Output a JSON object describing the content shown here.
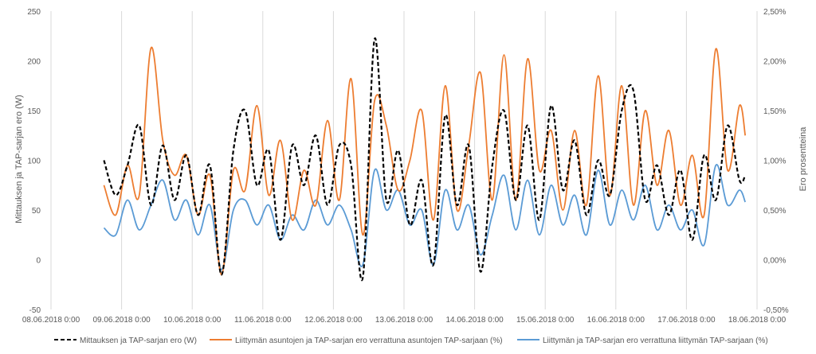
{
  "chart_data": {
    "type": "line",
    "title": "",
    "xlabel": "",
    "ylabel": "Mittauksen ja TAP-sarjan ero (W)",
    "y2label": "Ero prosentteina",
    "ylim": [
      -50,
      250
    ],
    "y_ticks": [
      "-50",
      "0",
      "50",
      "100",
      "150",
      "200",
      "250"
    ],
    "y2lim": [
      -0.5,
      2.5
    ],
    "y2_ticks": [
      "-0,50%",
      "0,00%",
      "0,50%",
      "1,00%",
      "1,50%",
      "2,00%",
      "2,50%"
    ],
    "xlim": [
      "08.06.2018 0:00",
      "18.06.2018 0:00"
    ],
    "x_ticks": [
      "08.06.2018 0:00",
      "09.06.2018 0:00",
      "10.06.2018 0:00",
      "11.06.2018 0:00",
      "12.06.2018 0:00",
      "13.06.2018 0:00",
      "14.06.2018 0:00",
      "15.06.2018 0:00",
      "16.06.2018 0:00",
      "17.06.2018 0:00",
      "18.06.2018 0:00"
    ],
    "grid": "vertical",
    "legend_position": "bottom",
    "series": [
      {
        "name": "Mittauksen ja TAP-sarjan ero (W)",
        "axis": "left",
        "color": "#000000",
        "style": "dashed",
        "points": [
          [
            "08.06.2018 18:00",
            100
          ],
          [
            "08.06.2018 22:00",
            65
          ],
          [
            "09.06.2018 2:00",
            95
          ],
          [
            "09.06.2018 6:00",
            135
          ],
          [
            "09.06.2018 10:00",
            55
          ],
          [
            "09.06.2018 14:00",
            115
          ],
          [
            "09.06.2018 18:00",
            60
          ],
          [
            "09.06.2018 22:00",
            105
          ],
          [
            "10.06.2018 2:00",
            45
          ],
          [
            "10.06.2018 6:00",
            95
          ],
          [
            "10.06.2018 10:00",
            -15
          ],
          [
            "10.06.2018 14:00",
            110
          ],
          [
            "10.06.2018 18:00",
            150
          ],
          [
            "10.06.2018 22:00",
            75
          ],
          [
            "11.06.2018 2:00",
            110
          ],
          [
            "11.06.2018 6:00",
            20
          ],
          [
            "11.06.2018 10:00",
            115
          ],
          [
            "11.06.2018 14:00",
            75
          ],
          [
            "11.06.2018 18:00",
            125
          ],
          [
            "11.06.2018 22:00",
            55
          ],
          [
            "12.06.2018 2:00",
            115
          ],
          [
            "12.06.2018 6:00",
            95
          ],
          [
            "12.06.2018 10:00",
            -18
          ],
          [
            "12.06.2018 14:00",
            222
          ],
          [
            "12.06.2018 18:00",
            60
          ],
          [
            "12.06.2018 22:00",
            110
          ],
          [
            "13.06.2018 2:00",
            35
          ],
          [
            "13.06.2018 6:00",
            80
          ],
          [
            "13.06.2018 10:00",
            -5
          ],
          [
            "13.06.2018 14:00",
            145
          ],
          [
            "13.06.2018 18:00",
            55
          ],
          [
            "13.06.2018 22:00",
            115
          ],
          [
            "14.06.2018 2:00",
            -12
          ],
          [
            "14.06.2018 6:00",
            95
          ],
          [
            "14.06.2018 10:00",
            150
          ],
          [
            "14.06.2018 14:00",
            60
          ],
          [
            "14.06.2018 18:00",
            135
          ],
          [
            "14.06.2018 22:00",
            40
          ],
          [
            "15.06.2018 2:00",
            155
          ],
          [
            "15.06.2018 6:00",
            70
          ],
          [
            "15.06.2018 10:00",
            120
          ],
          [
            "15.06.2018 14:00",
            45
          ],
          [
            "15.06.2018 18:00",
            100
          ],
          [
            "15.06.2018 22:00",
            65
          ],
          [
            "16.06.2018 2:00",
            150
          ],
          [
            "16.06.2018 6:00",
            170
          ],
          [
            "16.06.2018 10:00",
            60
          ],
          [
            "16.06.2018 14:00",
            95
          ],
          [
            "16.06.2018 18:00",
            45
          ],
          [
            "16.06.2018 22:00",
            90
          ],
          [
            "17.06.2018 2:00",
            20
          ],
          [
            "17.06.2018 6:00",
            105
          ],
          [
            "17.06.2018 10:00",
            60
          ],
          [
            "17.06.2018 14:00",
            135
          ],
          [
            "17.06.2018 18:00",
            80
          ],
          [
            "17.06.2018 20:00",
            85
          ]
        ]
      },
      {
        "name": "Liittymän asuntojen ja TAP-sarjan ero verrattuna asuntojen TAP-sarjaan (%)",
        "axis": "right",
        "color": "#ED7D31",
        "style": "solid",
        "points": [
          [
            "08.06.2018 18:00",
            0.75
          ],
          [
            "08.06.2018 22:00",
            0.45
          ],
          [
            "09.06.2018 2:00",
            0.95
          ],
          [
            "09.06.2018 6:00",
            0.65
          ],
          [
            "09.06.2018 10:00",
            2.13
          ],
          [
            "09.06.2018 14:00",
            1.2
          ],
          [
            "09.06.2018 18:00",
            0.85
          ],
          [
            "09.06.2018 22:00",
            1.05
          ],
          [
            "10.06.2018 2:00",
            0.45
          ],
          [
            "10.06.2018 6:00",
            0.85
          ],
          [
            "10.06.2018 10:00",
            -0.15
          ],
          [
            "10.06.2018 14:00",
            0.9
          ],
          [
            "10.06.2018 18:00",
            0.7
          ],
          [
            "10.06.2018 22:00",
            1.55
          ],
          [
            "11.06.2018 2:00",
            0.65
          ],
          [
            "11.06.2018 6:00",
            1.2
          ],
          [
            "11.06.2018 10:00",
            0.4
          ],
          [
            "11.06.2018 14:00",
            0.9
          ],
          [
            "11.06.2018 18:00",
            0.55
          ],
          [
            "11.06.2018 22:00",
            1.4
          ],
          [
            "12.06.2018 2:00",
            0.6
          ],
          [
            "12.06.2018 6:00",
            1.82
          ],
          [
            "12.06.2018 10:00",
            0.25
          ],
          [
            "12.06.2018 14:00",
            1.6
          ],
          [
            "12.06.2018 18:00",
            1.35
          ],
          [
            "12.06.2018 22:00",
            0.7
          ],
          [
            "13.06.2018 2:00",
            1.0
          ],
          [
            "13.06.2018 6:00",
            1.5
          ],
          [
            "13.06.2018 10:00",
            0.4
          ],
          [
            "13.06.2018 14:00",
            1.75
          ],
          [
            "13.06.2018 18:00",
            0.5
          ],
          [
            "13.06.2018 22:00",
            1.15
          ],
          [
            "14.06.2018 2:00",
            1.88
          ],
          [
            "14.06.2018 6:00",
            0.6
          ],
          [
            "14.06.2018 10:00",
            2.06
          ],
          [
            "14.06.2018 14:00",
            0.6
          ],
          [
            "14.06.2018 18:00",
            2.02
          ],
          [
            "14.06.2018 22:00",
            0.9
          ],
          [
            "15.06.2018 2:00",
            1.3
          ],
          [
            "15.06.2018 6:00",
            0.5
          ],
          [
            "15.06.2018 10:00",
            1.3
          ],
          [
            "15.06.2018 14:00",
            0.55
          ],
          [
            "15.06.2018 18:00",
            1.85
          ],
          [
            "15.06.2018 22:00",
            0.65
          ],
          [
            "16.06.2018 2:00",
            1.75
          ],
          [
            "16.06.2018 6:00",
            0.55
          ],
          [
            "16.06.2018 10:00",
            1.5
          ],
          [
            "16.06.2018 14:00",
            0.75
          ],
          [
            "16.06.2018 18:00",
            1.3
          ],
          [
            "16.06.2018 22:00",
            0.55
          ],
          [
            "17.06.2018 2:00",
            1.05
          ],
          [
            "17.06.2018 6:00",
            0.45
          ],
          [
            "17.06.2018 10:00",
            2.12
          ],
          [
            "17.06.2018 14:00",
            0.9
          ],
          [
            "17.06.2018 18:00",
            1.55
          ],
          [
            "17.06.2018 20:00",
            1.25
          ]
        ]
      },
      {
        "name": "Liittymän ja TAP-sarjan ero verrattuna liittymän TAP-sarjaan (%)",
        "axis": "right",
        "color": "#5B9BD5",
        "style": "solid",
        "points": [
          [
            "08.06.2018 18:00",
            0.32
          ],
          [
            "08.06.2018 22:00",
            0.25
          ],
          [
            "09.06.2018 2:00",
            0.6
          ],
          [
            "09.06.2018 6:00",
            0.3
          ],
          [
            "09.06.2018 10:00",
            0.55
          ],
          [
            "09.06.2018 14:00",
            0.8
          ],
          [
            "09.06.2018 18:00",
            0.4
          ],
          [
            "09.06.2018 22:00",
            0.6
          ],
          [
            "10.06.2018 2:00",
            0.25
          ],
          [
            "10.06.2018 6:00",
            0.55
          ],
          [
            "10.06.2018 10:00",
            -0.1
          ],
          [
            "10.06.2018 14:00",
            0.5
          ],
          [
            "10.06.2018 18:00",
            0.6
          ],
          [
            "10.06.2018 22:00",
            0.35
          ],
          [
            "11.06.2018 2:00",
            0.55
          ],
          [
            "11.06.2018 6:00",
            0.2
          ],
          [
            "11.06.2018 10:00",
            0.45
          ],
          [
            "11.06.2018 14:00",
            0.3
          ],
          [
            "11.06.2018 18:00",
            0.6
          ],
          [
            "11.06.2018 22:00",
            0.35
          ],
          [
            "12.06.2018 2:00",
            0.55
          ],
          [
            "12.06.2018 6:00",
            0.3
          ],
          [
            "12.06.2018 10:00",
            -0.05
          ],
          [
            "12.06.2018 14:00",
            0.9
          ],
          [
            "12.06.2018 18:00",
            0.5
          ],
          [
            "12.06.2018 22:00",
            0.7
          ],
          [
            "13.06.2018 2:00",
            0.35
          ],
          [
            "13.06.2018 6:00",
            0.5
          ],
          [
            "13.06.2018 10:00",
            -0.05
          ],
          [
            "13.06.2018 14:00",
            0.7
          ],
          [
            "13.06.2018 18:00",
            0.3
          ],
          [
            "13.06.2018 22:00",
            0.55
          ],
          [
            "14.06.2018 2:00",
            0.05
          ],
          [
            "14.06.2018 6:00",
            0.45
          ],
          [
            "14.06.2018 10:00",
            0.85
          ],
          [
            "14.06.2018 14:00",
            0.3
          ],
          [
            "14.06.2018 18:00",
            0.8
          ],
          [
            "14.06.2018 22:00",
            0.25
          ],
          [
            "15.06.2018 2:00",
            0.75
          ],
          [
            "15.06.2018 6:00",
            0.35
          ],
          [
            "15.06.2018 10:00",
            0.65
          ],
          [
            "15.06.2018 14:00",
            0.25
          ],
          [
            "15.06.2018 18:00",
            0.9
          ],
          [
            "15.06.2018 22:00",
            0.35
          ],
          [
            "16.06.2018 2:00",
            0.7
          ],
          [
            "16.06.2018 6:00",
            0.4
          ],
          [
            "16.06.2018 10:00",
            0.75
          ],
          [
            "16.06.2018 14:00",
            0.3
          ],
          [
            "16.06.2018 18:00",
            0.55
          ],
          [
            "16.06.2018 22:00",
            0.3
          ],
          [
            "17.06.2018 2:00",
            0.5
          ],
          [
            "17.06.2018 6:00",
            0.15
          ],
          [
            "17.06.2018 10:00",
            0.95
          ],
          [
            "17.06.2018 14:00",
            0.55
          ],
          [
            "17.06.2018 18:00",
            0.7
          ],
          [
            "17.06.2018 20:00",
            0.58
          ]
        ]
      }
    ]
  }
}
